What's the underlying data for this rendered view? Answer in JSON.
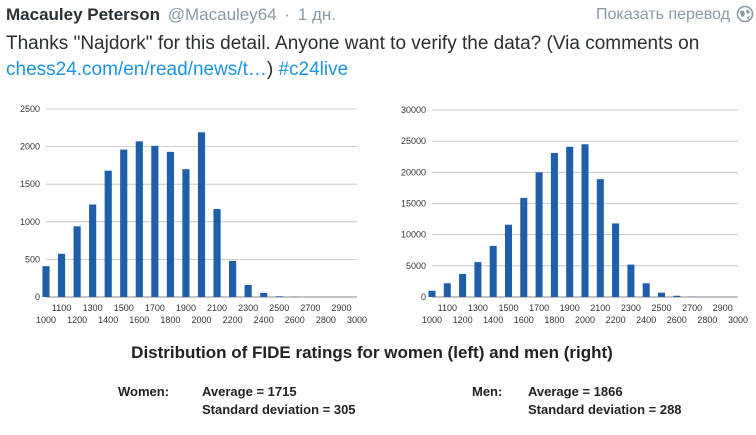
{
  "tweet": {
    "author_name": "Macauley Peterson",
    "handle": "@Macauley64",
    "separator": "·",
    "time": "1 дн.",
    "translate_label": "Показать перевод",
    "text_before": "Thanks \"Najdork\" for this detail.  Anyone want to verify the data? (Via comments on ",
    "link_text": "chess24.com/en/read/news/t…",
    "text_between": ") ",
    "hashtag": "#c24live"
  },
  "colors": {
    "bar": "#1f5ea8",
    "link": "#1b95e0",
    "muted": "#8899a6"
  },
  "figure": {
    "caption": "Distribution of FIDE ratings for women (left) and men (right)",
    "women_label": "Women:",
    "women_avg": "Average = 1715",
    "women_sd": "Standard deviation = 305",
    "men_label": "Men:",
    "men_avg": "Average = 1866",
    "men_sd": "Standard deviation = 288"
  },
  "chart_data": [
    {
      "type": "bar",
      "title": "",
      "xlabel": "",
      "ylabel": "",
      "ylim": [
        0,
        2500
      ],
      "yticks": [
        0,
        500,
        1000,
        1500,
        2000,
        2500
      ],
      "grid": true,
      "x_tick_labels_top": [
        "1100",
        "1300",
        "1500",
        "1700",
        "1900",
        "2100",
        "2300",
        "2500",
        "2700",
        "2900"
      ],
      "x_tick_labels_bottom": [
        "1000",
        "1200",
        "1400",
        "1600",
        "1800",
        "2000",
        "2200",
        "2400",
        "2600",
        "2800",
        "3000"
      ],
      "categories": [
        "1000",
        "1100",
        "1200",
        "1300",
        "1400",
        "1500",
        "1600",
        "1700",
        "1800",
        "1900",
        "2000",
        "2100",
        "2200",
        "2300",
        "2400",
        "2500",
        "2600",
        "2700",
        "2800",
        "2900",
        "3000"
      ],
      "values": [
        410,
        575,
        940,
        1230,
        1680,
        1960,
        2070,
        2010,
        1930,
        1700,
        2190,
        1170,
        480,
        160,
        55,
        10,
        3,
        0,
        0,
        0,
        0
      ]
    },
    {
      "type": "bar",
      "title": "",
      "xlabel": "",
      "ylabel": "",
      "ylim": [
        0,
        30000
      ],
      "yticks": [
        0,
        5000,
        10000,
        15000,
        20000,
        25000,
        30000
      ],
      "grid": true,
      "x_tick_labels_top": [
        "1100",
        "1300",
        "1500",
        "1700",
        "1900",
        "2100",
        "2300",
        "2500",
        "2700",
        "2900"
      ],
      "x_tick_labels_bottom": [
        "1000",
        "1200",
        "1400",
        "1600",
        "1800",
        "2000",
        "2200",
        "2400",
        "2600",
        "2800",
        "3000"
      ],
      "categories": [
        "1000",
        "1100",
        "1200",
        "1300",
        "1400",
        "1500",
        "1600",
        "1700",
        "1800",
        "1900",
        "2000",
        "2100",
        "2200",
        "2300",
        "2400",
        "2500",
        "2600",
        "2700",
        "2800",
        "2900",
        "3000"
      ],
      "values": [
        1000,
        2200,
        3700,
        5600,
        8200,
        11600,
        15900,
        20000,
        23100,
        24100,
        24500,
        18900,
        11800,
        5200,
        2200,
        700,
        200,
        50,
        0,
        0,
        0
      ]
    }
  ]
}
